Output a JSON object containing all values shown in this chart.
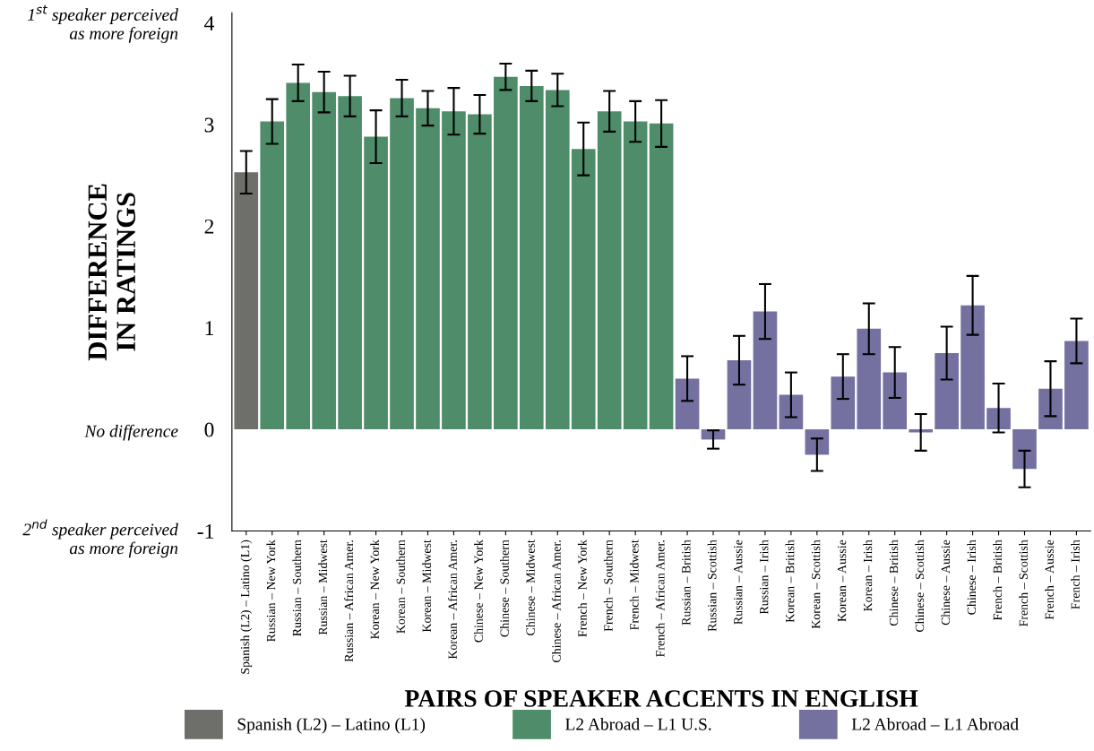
{
  "chart_data": {
    "type": "bar",
    "xlabel": "PAIRS OF SPEAKER ACCENTS IN ENGLISH",
    "ylabel": "DIFFERENCE\nIN RATINGS",
    "categories": [
      "Spanish (L2) – Latino (L1)",
      "Russian – New York",
      "Russian – Southern",
      "Russian – Midwest",
      "Russian – African Amer.",
      "Korean – New York",
      "Korean – Southern",
      "Korean – Midwest",
      "Korean – African Amer.",
      "Chinese – New York",
      "Chinese – Southern",
      "Chinese – Midwest",
      "Chinese – African Amer.",
      "French – New York",
      "French – Southern",
      "French – Midwest",
      "French – African Amer.",
      "Russian – British",
      "Russian – Scottish",
      "Russian – Aussie",
      "Russian – Irish",
      "Korean – British",
      "Korean – Scottish",
      "Korean – Aussie",
      "Korean – Irish",
      "Chinese – British",
      "Chinese – Scottish",
      "Chinese – Aussie",
      "Chinese – Irish",
      "French – British",
      "French – Scottish",
      "French – Aussie",
      "French – Irish"
    ],
    "series": [
      {
        "name": "Spanish (L2) – Latino (L1)",
        "color": "#6e6e6a",
        "values": [
          2.53,
          null,
          null,
          null,
          null,
          null,
          null,
          null,
          null,
          null,
          null,
          null,
          null,
          null,
          null,
          null,
          null,
          null,
          null,
          null,
          null,
          null,
          null,
          null,
          null,
          null,
          null,
          null,
          null,
          null,
          null,
          null,
          null
        ],
        "errors": [
          0.21,
          null,
          null,
          null,
          null,
          null,
          null,
          null,
          null,
          null,
          null,
          null,
          null,
          null,
          null,
          null,
          null,
          null,
          null,
          null,
          null,
          null,
          null,
          null,
          null,
          null,
          null,
          null,
          null,
          null,
          null,
          null,
          null
        ]
      },
      {
        "name": "L2 Abroad – L1 U.S.",
        "color": "#4e8c6a",
        "values": [
          null,
          3.03,
          3.41,
          3.32,
          3.28,
          2.88,
          3.26,
          3.16,
          3.13,
          3.1,
          3.47,
          3.38,
          3.34,
          2.76,
          3.13,
          3.03,
          3.01,
          null,
          null,
          null,
          null,
          null,
          null,
          null,
          null,
          null,
          null,
          null,
          null,
          null,
          null,
          null,
          null
        ],
        "errors": [
          null,
          0.22,
          0.18,
          0.2,
          0.2,
          0.26,
          0.18,
          0.17,
          0.23,
          0.19,
          0.13,
          0.15,
          0.16,
          0.26,
          0.2,
          0.2,
          0.23,
          null,
          null,
          null,
          null,
          null,
          null,
          null,
          null,
          null,
          null,
          null,
          null,
          null,
          null,
          null,
          null
        ]
      },
      {
        "name": "L2 Abroad – L1 Abroad",
        "color": "#7470a0",
        "values": [
          null,
          null,
          null,
          null,
          null,
          null,
          null,
          null,
          null,
          null,
          null,
          null,
          null,
          null,
          null,
          null,
          null,
          0.5,
          -0.1,
          0.68,
          1.16,
          0.34,
          -0.25,
          0.52,
          0.99,
          0.56,
          -0.03,
          0.75,
          1.22,
          0.21,
          -0.39,
          0.4,
          0.87
        ],
        "errors": [
          null,
          null,
          null,
          null,
          null,
          null,
          null,
          null,
          null,
          null,
          null,
          null,
          null,
          null,
          null,
          null,
          null,
          0.22,
          0.09,
          0.24,
          0.27,
          0.22,
          0.16,
          0.22,
          0.25,
          0.25,
          0.18,
          0.26,
          0.29,
          0.24,
          0.18,
          0.27,
          0.22
        ]
      }
    ],
    "ylim": [
      -1,
      4.1
    ],
    "yticks": [
      -1,
      0,
      1,
      2,
      3,
      4
    ],
    "grid": false,
    "legend": "bottom",
    "annotations": [
      "1$^{st}$ speaker perceived\nas more foreign",
      "No difference",
      "2$^{nd}$ speaker perceived\nas more foreign"
    ]
  }
}
